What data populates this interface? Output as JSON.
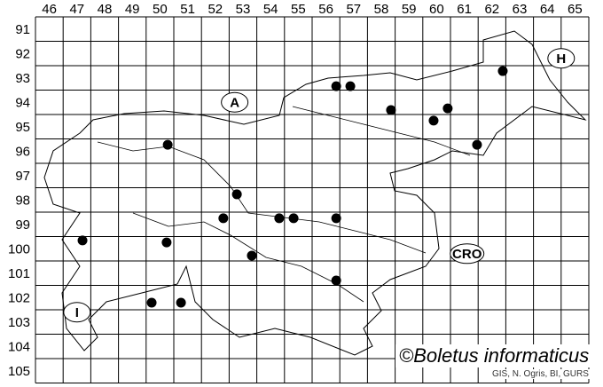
{
  "grid": {
    "columns": [
      "46",
      "47",
      "48",
      "49",
      "50",
      "51",
      "52",
      "53",
      "54",
      "55",
      "56",
      "57",
      "58",
      "59",
      "60",
      "61",
      "62",
      "63",
      "64",
      "65"
    ],
    "rows": [
      "91",
      "92",
      "93",
      "94",
      "95",
      "96",
      "97",
      "98",
      "99",
      "100",
      "101",
      "102",
      "103",
      "104",
      "105"
    ]
  },
  "country_labels": [
    {
      "text": "A",
      "col": 53.2,
      "row": 94.5
    },
    {
      "text": "H",
      "col": 65.0,
      "row": 92.7
    },
    {
      "text": "CRO",
      "col": 61.6,
      "row": 100.7
    },
    {
      "text": "I",
      "col": 47.5,
      "row": 103.1
    }
  ],
  "records": [
    {
      "col": 56.87,
      "row": 93.84
    },
    {
      "col": 57.38,
      "row": 93.84
    },
    {
      "col": 62.89,
      "row": 93.22
    },
    {
      "col": 58.85,
      "row": 94.82
    },
    {
      "col": 60.9,
      "row": 94.75
    },
    {
      "col": 60.39,
      "row": 95.25
    },
    {
      "col": 61.96,
      "row": 96.24
    },
    {
      "col": 50.78,
      "row": 96.24
    },
    {
      "col": 53.28,
      "row": 98.27
    },
    {
      "col": 52.79,
      "row": 99.25
    },
    {
      "col": 54.81,
      "row": 99.25
    },
    {
      "col": 55.33,
      "row": 99.25
    },
    {
      "col": 56.87,
      "row": 99.25
    },
    {
      "col": 47.7,
      "row": 100.16
    },
    {
      "col": 50.74,
      "row": 100.24
    },
    {
      "col": 53.82,
      "row": 100.78
    },
    {
      "col": 56.87,
      "row": 101.8
    },
    {
      "col": 50.2,
      "row": 102.71
    },
    {
      "col": 51.26,
      "row": 102.71
    }
  ],
  "copyright": "©Boletus informaticus",
  "credit": "GIS, N. Ogris, BI, GURS",
  "colors": {
    "line": "#000000",
    "dot": "#000000",
    "background": "#ffffff"
  }
}
